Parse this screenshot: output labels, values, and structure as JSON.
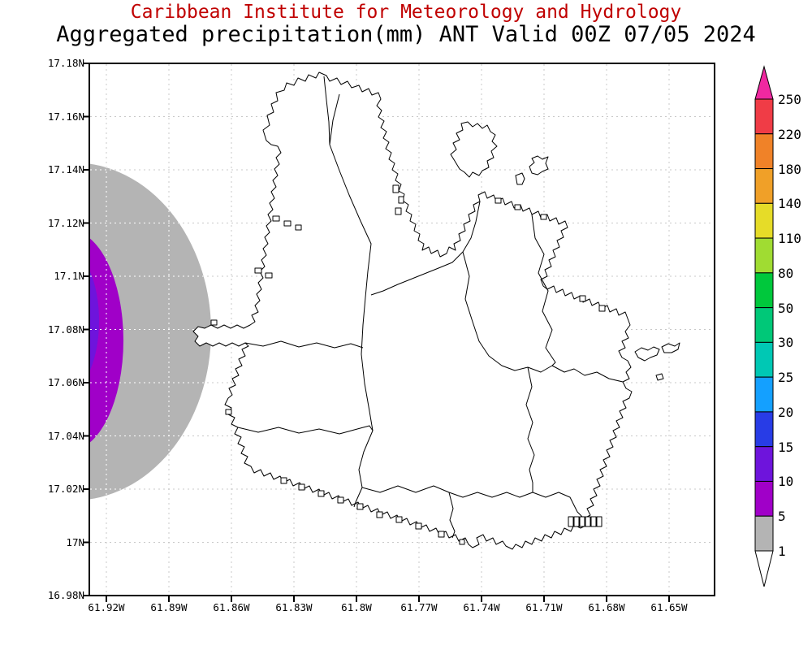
{
  "header": {
    "line1": "Caribbean Institute for Meteorology and Hydrology",
    "line2": "Aggregated precipitation(mm) ANT Valid 00Z 07/05 2024",
    "line1_color": "#c00000",
    "line2_color": "#000000"
  },
  "chart_data": {
    "type": "heatmap",
    "title": "Aggregated precipitation(mm) ANT Valid 00Z 07/05 2024",
    "source": "Caribbean Institute for Meteorology and Hydrology",
    "region": "Antigua (ANT)",
    "units": "mm",
    "grid": true,
    "grid_color": "#c8c8c8",
    "xlabel_ticks": [
      "61.92W",
      "61.89W",
      "61.86W",
      "61.83W",
      "61.8W",
      "61.77W",
      "61.74W",
      "61.71W",
      "61.68W",
      "61.65W"
    ],
    "ylabel_ticks": [
      "17.18N",
      "17.16N",
      "17.14N",
      "17.12N",
      "17.1N",
      "17.08N",
      "17.06N",
      "17.04N",
      "17.02N",
      "17N",
      "16.98N"
    ],
    "xlim": [
      "61.92W",
      "61.65W"
    ],
    "ylim": [
      "16.98N",
      "17.18N"
    ],
    "colorbar_levels_top_to_bottom": [
      "250",
      "220",
      "180",
      "140",
      "110",
      "80",
      "50",
      "30",
      "25",
      "20",
      "15",
      "10",
      "5",
      "1"
    ],
    "colorbar_colors_top_to_bottom": [
      "#f028a0",
      "#f03c46",
      "#f08228",
      "#f0a028",
      "#e6dc28",
      "#a0dc32",
      "#00c83c",
      "#00c878",
      "#00c8b4",
      "#14a0ff",
      "#283ce6",
      "#6e14dc",
      "#a000c8",
      "#b4b4b4",
      "#ffffff"
    ],
    "shaded_regions": [
      {
        "range_mm": "1-5",
        "color": "#b4b4b4",
        "location": "offshore west of Antigua, approx 17.04N-17.14N at plot west edge"
      },
      {
        "range_mm": "5-10",
        "color": "#a000c8",
        "location": "west plot edge approx 17.06N-17.12N"
      },
      {
        "range_mm": "10-15",
        "color": "#6e14dc",
        "location": "far west plot edge approx 17.07N-17.11N"
      }
    ]
  }
}
